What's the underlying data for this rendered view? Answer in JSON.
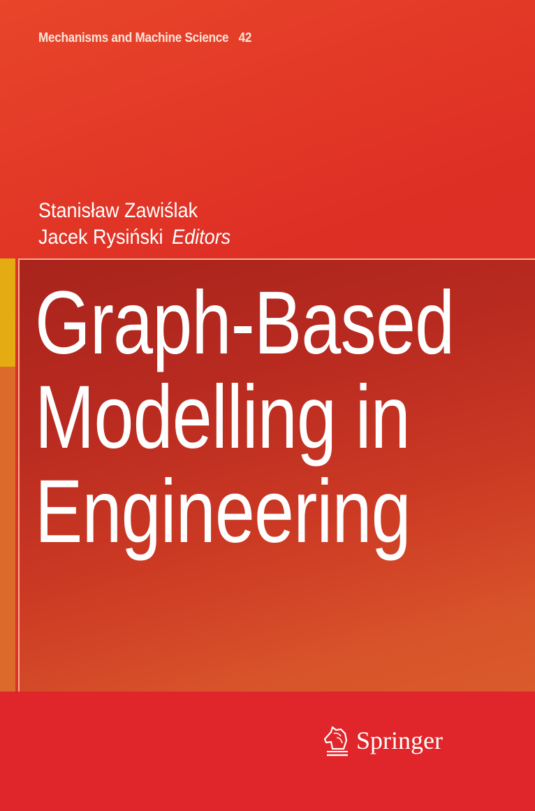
{
  "series": {
    "name": "Mechanisms and Machine Science",
    "number": "42"
  },
  "editors": {
    "names": [
      "Stanisław Zawiślak",
      "Jacek Rysiński"
    ],
    "role": "Editors"
  },
  "title": {
    "lines": [
      "Graph-Based",
      "Modelling in",
      "Engineering"
    ]
  },
  "publisher": {
    "name": "Springer",
    "icon": "knight-chess-icon"
  },
  "colors": {
    "background": "#e0302a",
    "accent_yellow": "#e4ac12",
    "title_panel": "#b82a20"
  }
}
